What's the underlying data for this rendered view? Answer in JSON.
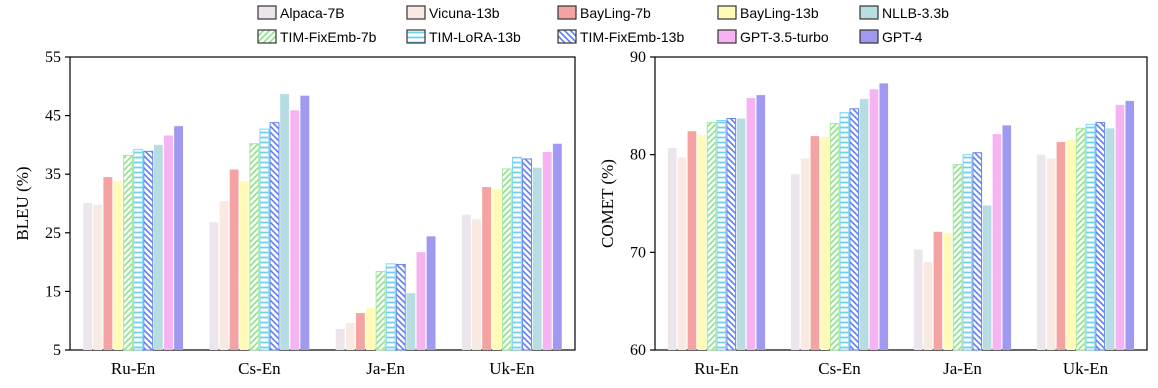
{
  "legend": [
    {
      "name": "Alpaca-7B",
      "color": "#ece6ec",
      "pattern": "solid"
    },
    {
      "name": "Vicuna-13b",
      "color": "#f8e9e1",
      "pattern": "solid"
    },
    {
      "name": "BayLing-7b",
      "color": "#f4a3a2",
      "pattern": "solid"
    },
    {
      "name": "BayLing-13b",
      "color": "#fffab8",
      "pattern": "solid"
    },
    {
      "name": "NLLB-3.3b",
      "color": "#b7dce2",
      "pattern": "solid"
    },
    {
      "name": "TIM-FixEmb-7b",
      "color": "#a8e8a0",
      "pattern": "hatch-pos"
    },
    {
      "name": "TIM-LoRA-13b",
      "color": "#7fd8f0",
      "pattern": "hatch-h"
    },
    {
      "name": "TIM-FixEmb-13b",
      "color": "#6a86f0",
      "pattern": "hatch-neg"
    },
    {
      "name": "GPT-3.5-turbo",
      "color": "#f6b3f2",
      "pattern": "solid"
    },
    {
      "name": "GPT-4",
      "color": "#9f9af0",
      "pattern": "solid"
    }
  ],
  "chart_data": [
    {
      "type": "bar",
      "ylabel": "BLEU (%)",
      "ylim": [
        5,
        55
      ],
      "yticks": [
        "5",
        "15",
        "25",
        "35",
        "45",
        "55"
      ],
      "categories": [
        "Ru-En",
        "Cs-En",
        "Ja-En",
        "Uk-En"
      ],
      "series": [
        {
          "name": "Alpaca-7B",
          "values": [
            30.1,
            26.8,
            8.6,
            28.1
          ]
        },
        {
          "name": "Vicuna-13b",
          "values": [
            29.8,
            30.4,
            9.6,
            27.3
          ]
        },
        {
          "name": "BayLing-7b",
          "values": [
            34.5,
            35.8,
            11.3,
            32.8
          ]
        },
        {
          "name": "BayLing-13b",
          "values": [
            33.8,
            33.8,
            12.2,
            32.4
          ]
        },
        {
          "name": "TIM-FixEmb-7b",
          "values": [
            38.2,
            40.2,
            18.4,
            35.9
          ]
        },
        {
          "name": "TIM-LoRA-13b",
          "values": [
            39.2,
            42.7,
            19.7,
            37.9
          ]
        },
        {
          "name": "TIM-FixEmb-13b",
          "values": [
            38.9,
            43.8,
            19.6,
            37.6
          ]
        },
        {
          "name": "NLLB-3.3b",
          "values": [
            40.0,
            48.7,
            14.7,
            36.1
          ]
        },
        {
          "name": "GPT-3.5-turbo",
          "values": [
            41.6,
            45.9,
            21.7,
            38.8
          ]
        },
        {
          "name": "GPT-4",
          "values": [
            43.2,
            48.4,
            24.4,
            40.2
          ]
        }
      ]
    },
    {
      "type": "bar",
      "ylabel": "COMET (%)",
      "ylim": [
        60,
        90
      ],
      "yticks": [
        "60",
        "70",
        "80",
        "90"
      ],
      "categories": [
        "Ru-En",
        "Cs-En",
        "Ja-En",
        "Uk-En"
      ],
      "series": [
        {
          "name": "Alpaca-7B",
          "values": [
            80.7,
            78.0,
            70.3,
            80.0
          ]
        },
        {
          "name": "Vicuna-13b",
          "values": [
            79.7,
            79.6,
            69.0,
            79.6
          ]
        },
        {
          "name": "BayLing-7b",
          "values": [
            82.4,
            81.9,
            72.1,
            81.3
          ]
        },
        {
          "name": "BayLing-13b",
          "values": [
            82.0,
            81.8,
            72.0,
            81.5
          ]
        },
        {
          "name": "TIM-FixEmb-7b",
          "values": [
            83.3,
            83.2,
            79.0,
            82.7
          ]
        },
        {
          "name": "TIM-LoRA-13b",
          "values": [
            83.5,
            84.3,
            80.0,
            83.1
          ]
        },
        {
          "name": "TIM-FixEmb-13b",
          "values": [
            83.7,
            84.7,
            80.2,
            83.3
          ]
        },
        {
          "name": "NLLB-3.3b",
          "values": [
            83.7,
            85.7,
            74.8,
            82.7
          ]
        },
        {
          "name": "GPT-3.5-turbo",
          "values": [
            85.8,
            86.7,
            82.1,
            85.1
          ]
        },
        {
          "name": "GPT-4",
          "values": [
            86.1,
            87.3,
            83.0,
            85.5
          ]
        }
      ]
    }
  ]
}
